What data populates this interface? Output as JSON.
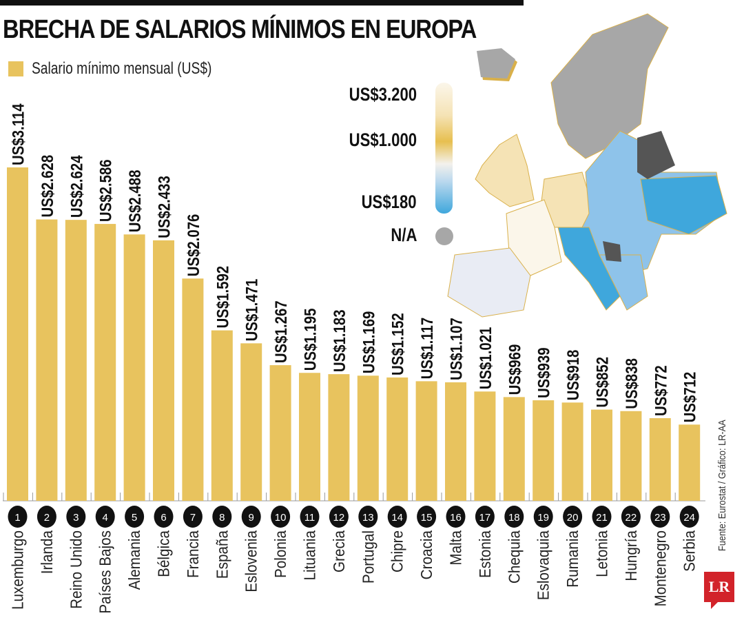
{
  "title": "BRECHA DE SALARIOS MÍNIMOS EN EUROPA",
  "legend": {
    "label": "Salario mínimo mensual (US$)",
    "color": "#e8c35e"
  },
  "map_scale": {
    "labels": [
      "US$3.200",
      "US$1.000",
      "US$180"
    ],
    "na_label": "N/A",
    "colors": {
      "high": "#fbf6ea",
      "mid": "#e7bf4f",
      "low": "#3fa7dc",
      "na": "#a7a7a7"
    }
  },
  "source": "Fuente: Eurostat / Gráfico: LR-AA",
  "logo": "LR",
  "chart_data": {
    "type": "bar",
    "title": "BRECHA DE SALARIOS MÍNIMOS EN EUROPA",
    "xlabel": "",
    "ylabel": "",
    "ylim": [
      0,
      3200
    ],
    "grid": false,
    "legend": "top-left",
    "series": [
      {
        "name": "Salario mínimo mensual (US$)",
        "values": [
          3114,
          2628,
          2624,
          2586,
          2488,
          2433,
          2076,
          1592,
          1471,
          1267,
          1195,
          1183,
          1169,
          1152,
          1117,
          1107,
          1021,
          969,
          939,
          918,
          852,
          838,
          772,
          712
        ]
      }
    ],
    "categories": [
      "Luxemburgo",
      "Irlanda",
      "Reino Unido",
      "Países Bajos",
      "Alemania",
      "Bélgica",
      "Francia",
      "España",
      "Eslovenia",
      "Polonia",
      "Lituania",
      "Grecia",
      "Portugal",
      "Chipre",
      "Croacia",
      "Malta",
      "Estonia",
      "Chequia",
      "Eslovaquia",
      "Rumania",
      "Letonia",
      "Hungría",
      "Montenegro",
      "Serbia"
    ],
    "ranks": [
      "1",
      "2",
      "3",
      "4",
      "5",
      "6",
      "7",
      "8",
      "9",
      "10",
      "11",
      "12",
      "13",
      "14",
      "15",
      "16",
      "17",
      "18",
      "19",
      "20",
      "21",
      "22",
      "23",
      "24"
    ],
    "data_labels": [
      "US$3.114",
      "US$2.628",
      "US$2.624",
      "US$2.586",
      "US$2.488",
      "US$2.433",
      "US$2.076",
      "US$1.592",
      "US$1.471",
      "US$1.267",
      "US$1.195",
      "US$1.183",
      "US$1.169",
      "US$1.152",
      "US$1.117",
      "US$1.107",
      "US$1.021",
      "US$969",
      "US$939",
      "US$918",
      "US$852",
      "US$838",
      "US$772",
      "US$712"
    ]
  }
}
